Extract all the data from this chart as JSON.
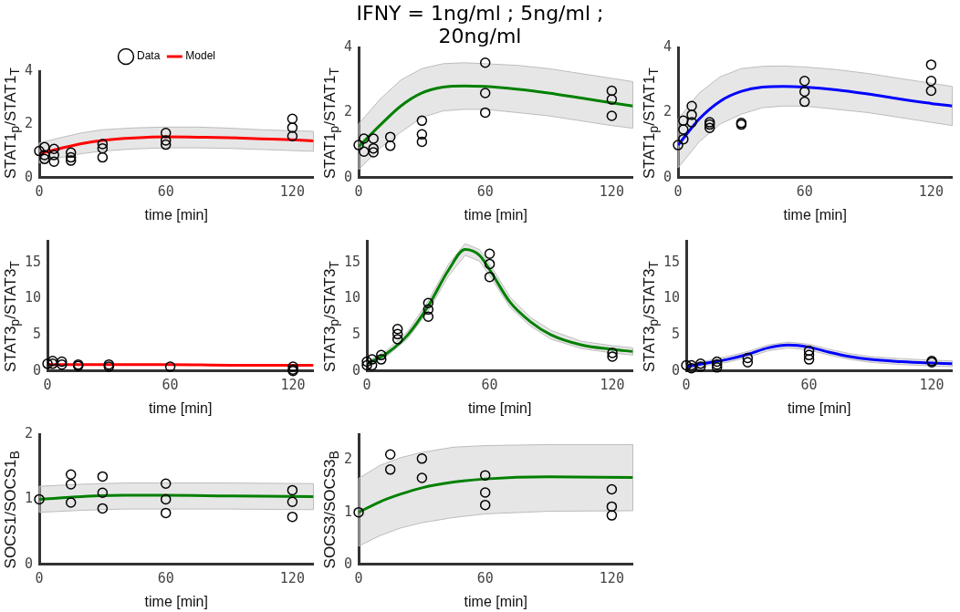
{
  "chart_data": [
    {
      "type": "other",
      "title": "IFNY = 1ng/ml ; 5ng/ml ; 20ng/ml"
    },
    {
      "type": "scatter",
      "xlabel": "time [min]",
      "ylabel": "STAT1$_{p}$/STAT1$_{T}$",
      "xlim": [
        0,
        130
      ],
      "xticks": [
        0,
        60,
        120
      ],
      "ylim": [
        0,
        4
      ],
      "yticks": [
        0,
        2,
        4
      ],
      "grid": false,
      "legend": "top",
      "series": [
        {
          "name": "Data",
          "type": "scatter",
          "marker": "circle",
          "color": "#000000",
          "x": [
            0,
            2.5,
            2.5,
            2.5,
            7,
            7,
            7,
            15,
            15,
            15,
            30,
            30,
            30,
            60,
            60,
            60,
            120,
            120,
            120
          ],
          "values": [
            1.0,
            1.15,
            0.85,
            0.7,
            1.08,
            0.85,
            0.6,
            0.94,
            0.76,
            0.64,
            1.26,
            1.1,
            0.76,
            1.68,
            1.4,
            1.24,
            2.21,
            1.88,
            1.56
          ]
        },
        {
          "name": "Model",
          "type": "line",
          "color": "#ff0000",
          "x": [
            0,
            10,
            20,
            30,
            45,
            60,
            75,
            90,
            105,
            120,
            130
          ],
          "values": [
            0.9,
            1.1,
            1.28,
            1.4,
            1.49,
            1.53,
            1.52,
            1.5,
            1.46,
            1.42,
            1.38
          ],
          "lower": [
            0.55,
            0.75,
            0.9,
            1.0,
            1.08,
            1.12,
            1.12,
            1.1,
            1.06,
            1.02,
            0.99
          ],
          "upper": [
            1.3,
            1.5,
            1.68,
            1.8,
            1.87,
            1.9,
            1.9,
            1.86,
            1.8,
            1.76,
            1.74
          ]
        }
      ]
    },
    {
      "type": "scatter",
      "xlabel": "time [min]",
      "ylabel": "STAT1$_{p}$/STAT1$_{T}$",
      "xlim": [
        0,
        130
      ],
      "xticks": [
        0,
        60,
        120
      ],
      "ylim": [
        0,
        4
      ],
      "yticks": [
        0,
        2,
        4
      ],
      "grid": false,
      "series": [
        {
          "type": "scatter",
          "marker": "circle",
          "color": "#000000",
          "x": [
            0,
            2.5,
            2.5,
            7,
            7,
            7,
            15,
            15,
            30,
            30,
            30,
            60,
            60,
            60,
            120,
            120,
            120
          ],
          "values": [
            1.0,
            1.2,
            0.8,
            1.2,
            0.9,
            0.78,
            1.25,
            0.98,
            1.75,
            1.33,
            1.1,
            3.53,
            2.6,
            2.0,
            2.67,
            2.4,
            1.9
          ]
        },
        {
          "type": "line",
          "color": "#008000",
          "x": [
            0,
            10,
            20,
            30,
            40,
            50,
            60,
            75,
            90,
            105,
            120,
            130
          ],
          "values": [
            0.95,
            1.6,
            2.2,
            2.6,
            2.78,
            2.82,
            2.8,
            2.72,
            2.6,
            2.45,
            2.3,
            2.2
          ],
          "lower": [
            0.25,
            0.9,
            1.4,
            1.85,
            2.05,
            2.1,
            2.1,
            2.0,
            1.9,
            1.75,
            1.6,
            1.52
          ],
          "upper": [
            1.65,
            2.4,
            3.0,
            3.35,
            3.5,
            3.53,
            3.5,
            3.45,
            3.35,
            3.2,
            3.05,
            2.95
          ]
        }
      ]
    },
    {
      "type": "scatter",
      "xlabel": "time [min]",
      "ylabel": "STAT1$_{p}$/STAT1$_{T}$",
      "xlim": [
        0,
        130
      ],
      "xticks": [
        0,
        60,
        120
      ],
      "ylim": [
        0,
        4
      ],
      "yticks": [
        0,
        2,
        4
      ],
      "grid": false,
      "series": [
        {
          "type": "scatter",
          "marker": "circle",
          "color": "#000000",
          "x": [
            0,
            2.5,
            2.5,
            2.5,
            6.5,
            6.5,
            6.5,
            15,
            15,
            15,
            30,
            30,
            60,
            60,
            60,
            120,
            120,
            120
          ],
          "values": [
            1.0,
            1.75,
            1.48,
            1.18,
            2.2,
            1.93,
            1.7,
            1.7,
            1.63,
            1.53,
            1.68,
            1.63,
            2.97,
            2.64,
            2.33,
            3.47,
            2.97,
            2.67
          ]
        },
        {
          "type": "line",
          "color": "#0000ff",
          "x": [
            0,
            10,
            20,
            30,
            40,
            50,
            60,
            75,
            90,
            105,
            120,
            130
          ],
          "values": [
            1.0,
            1.8,
            2.35,
            2.65,
            2.78,
            2.8,
            2.78,
            2.7,
            2.57,
            2.42,
            2.28,
            2.2
          ],
          "lower": [
            0.3,
            1.1,
            1.65,
            1.95,
            2.15,
            2.2,
            2.2,
            2.1,
            2.0,
            1.85,
            1.7,
            1.6
          ],
          "upper": [
            1.8,
            2.6,
            3.1,
            3.35,
            3.42,
            3.43,
            3.4,
            3.32,
            3.2,
            3.05,
            2.9,
            2.8
          ]
        }
      ]
    },
    {
      "type": "scatter",
      "xlabel": "time [min]",
      "ylabel": "STAT3$_{p}$/STAT3$_{T}$",
      "xlim": [
        0,
        130
      ],
      "xticks": [
        0,
        60,
        120
      ],
      "ylim": [
        0,
        18
      ],
      "yticks": [
        0,
        5,
        10,
        15
      ],
      "grid": false,
      "series": [
        {
          "type": "scatter",
          "marker": "circle",
          "color": "#000000",
          "x": [
            0,
            2.5,
            2.5,
            7,
            7,
            15,
            15,
            30,
            30,
            60,
            120,
            120,
            120
          ],
          "values": [
            1.0,
            1.4,
            1.0,
            1.3,
            0.9,
            0.9,
            0.7,
            0.9,
            0.6,
            0.6,
            0.6,
            0.2,
            0.0
          ]
        },
        {
          "type": "line",
          "color": "#ff0000",
          "x": [
            0,
            30,
            60,
            90,
            130
          ],
          "values": [
            0.9,
            0.9,
            0.9,
            0.8,
            0.8
          ]
        }
      ]
    },
    {
      "type": "scatter",
      "xlabel": "time [min]",
      "ylabel": "STAT3$_{p}$/STAT3$_{T}$",
      "xlim": [
        0,
        130
      ],
      "xticks": [
        0,
        60,
        120
      ],
      "ylim": [
        0,
        18
      ],
      "yticks": [
        0,
        5,
        10,
        15
      ],
      "grid": false,
      "series": [
        {
          "type": "scatter",
          "marker": "circle",
          "color": "#000000",
          "x": [
            0,
            0,
            2.5,
            2.5,
            7,
            7,
            15,
            15,
            15,
            30,
            30,
            30,
            60,
            60,
            60,
            120,
            120
          ],
          "values": [
            0.8,
            1.3,
            1.6,
            0.8,
            2.2,
            1.6,
            5.8,
            5.1,
            4.4,
            9.4,
            8.5,
            7.5,
            16.2,
            14.8,
            13.0,
            2.5,
            2.0
          ]
        },
        {
          "type": "line",
          "color": "#008000",
          "x": [
            0,
            10,
            20,
            30,
            40,
            48,
            55,
            60,
            70,
            80,
            90,
            105,
            120,
            130
          ],
          "values": [
            1.0,
            2.5,
            5.0,
            9.0,
            14.0,
            16.8,
            16.0,
            14.0,
            9.5,
            6.8,
            5.0,
            3.6,
            3.0,
            2.7
          ],
          "lower": [
            0.7,
            2.1,
            4.5,
            8.3,
            13.2,
            16.0,
            15.2,
            13.2,
            8.8,
            6.2,
            4.4,
            3.1,
            2.5,
            2.2
          ],
          "upper": [
            1.3,
            2.9,
            5.5,
            9.7,
            14.8,
            17.6,
            16.8,
            14.8,
            10.2,
            7.4,
            5.6,
            4.1,
            3.5,
            3.2
          ]
        }
      ]
    },
    {
      "type": "scatter",
      "xlabel": "time [min]",
      "ylabel": "STAT3$_{p}$/STAT3$_{T}$",
      "xlim": [
        0,
        130
      ],
      "xticks": [
        0,
        60,
        120
      ],
      "ylim": [
        0,
        18
      ],
      "yticks": [
        0,
        5,
        10,
        15
      ],
      "grid": false,
      "series": [
        {
          "type": "scatter",
          "marker": "circle",
          "color": "#000000",
          "x": [
            0,
            2.5,
            2.5,
            7,
            7,
            15,
            15,
            15,
            30,
            30,
            60,
            60,
            60,
            120,
            120
          ],
          "values": [
            0.8,
            0.4,
            0.8,
            1.0,
            0.6,
            1.3,
            0.9,
            0.5,
            1.8,
            1.2,
            2.8,
            2.2,
            1.6,
            1.4,
            1.2
          ]
        },
        {
          "type": "line",
          "color": "#0000ff",
          "x": [
            0,
            10,
            20,
            30,
            40,
            50,
            60,
            70,
            80,
            90,
            105,
            120,
            130
          ],
          "values": [
            0.6,
            1.1,
            1.6,
            2.3,
            3.2,
            3.6,
            3.3,
            2.6,
            2.0,
            1.6,
            1.3,
            1.1,
            1.0
          ],
          "lower": [
            0.3,
            0.8,
            1.2,
            1.9,
            2.8,
            3.2,
            2.9,
            2.2,
            1.6,
            1.2,
            0.9,
            0.7,
            0.6
          ],
          "upper": [
            0.9,
            1.4,
            2.0,
            2.7,
            3.6,
            4.0,
            3.7,
            3.0,
            2.4,
            2.0,
            1.7,
            1.5,
            1.4
          ]
        }
      ]
    },
    {
      "type": "scatter",
      "xlabel": "time [min]",
      "ylabel": "SOCS1/SOCS1$_{B}$",
      "xlim": [
        0,
        130
      ],
      "xticks": [
        0,
        60,
        120
      ],
      "ylim": [
        0,
        2
      ],
      "yticks": [
        0,
        1,
        2
      ],
      "grid": false,
      "series": [
        {
          "type": "scatter",
          "marker": "circle",
          "color": "#000000",
          "x": [
            0,
            15,
            15,
            15,
            30,
            30,
            30,
            60,
            60,
            60,
            120,
            120,
            120
          ],
          "values": [
            1.0,
            1.38,
            1.23,
            0.95,
            1.35,
            1.1,
            0.86,
            1.24,
            1.0,
            0.79,
            1.14,
            0.96,
            0.73
          ]
        },
        {
          "type": "line",
          "color": "#008000",
          "x": [
            0,
            20,
            40,
            60,
            90,
            130
          ],
          "values": [
            1.0,
            1.04,
            1.06,
            1.06,
            1.05,
            1.04
          ],
          "lower": [
            0.8,
            0.83,
            0.85,
            0.85,
            0.85,
            0.84
          ],
          "upper": [
            1.2,
            1.23,
            1.25,
            1.25,
            1.25,
            1.24
          ]
        }
      ]
    },
    {
      "type": "scatter",
      "xlabel": "time [min]",
      "ylabel": "SOCS3/SOCS3$_{B}$",
      "xlim": [
        0,
        130
      ],
      "xticks": [
        0,
        60,
        120
      ],
      "ylim": [
        0,
        2.5
      ],
      "yticks": [
        0,
        1,
        2
      ],
      "grid": false,
      "series": [
        {
          "type": "scatter",
          "marker": "circle",
          "color": "#000000",
          "x": [
            0,
            15,
            15,
            30,
            30,
            60,
            60,
            60,
            120,
            120,
            120
          ],
          "values": [
            1.0,
            2.11,
            1.82,
            2.03,
            1.66,
            1.71,
            1.38,
            1.14,
            1.44,
            1.11,
            0.94
          ]
        },
        {
          "type": "line",
          "color": "#008000",
          "x": [
            0,
            10,
            20,
            30,
            45,
            60,
            90,
            130
          ],
          "values": [
            1.0,
            1.2,
            1.35,
            1.47,
            1.58,
            1.64,
            1.68,
            1.67
          ],
          "lower": [
            0.35,
            0.55,
            0.7,
            0.8,
            0.9,
            0.97,
            1.02,
            1.03
          ],
          "upper": [
            1.65,
            1.9,
            2.05,
            2.15,
            2.25,
            2.28,
            2.3,
            2.3
          ]
        }
      ]
    }
  ]
}
